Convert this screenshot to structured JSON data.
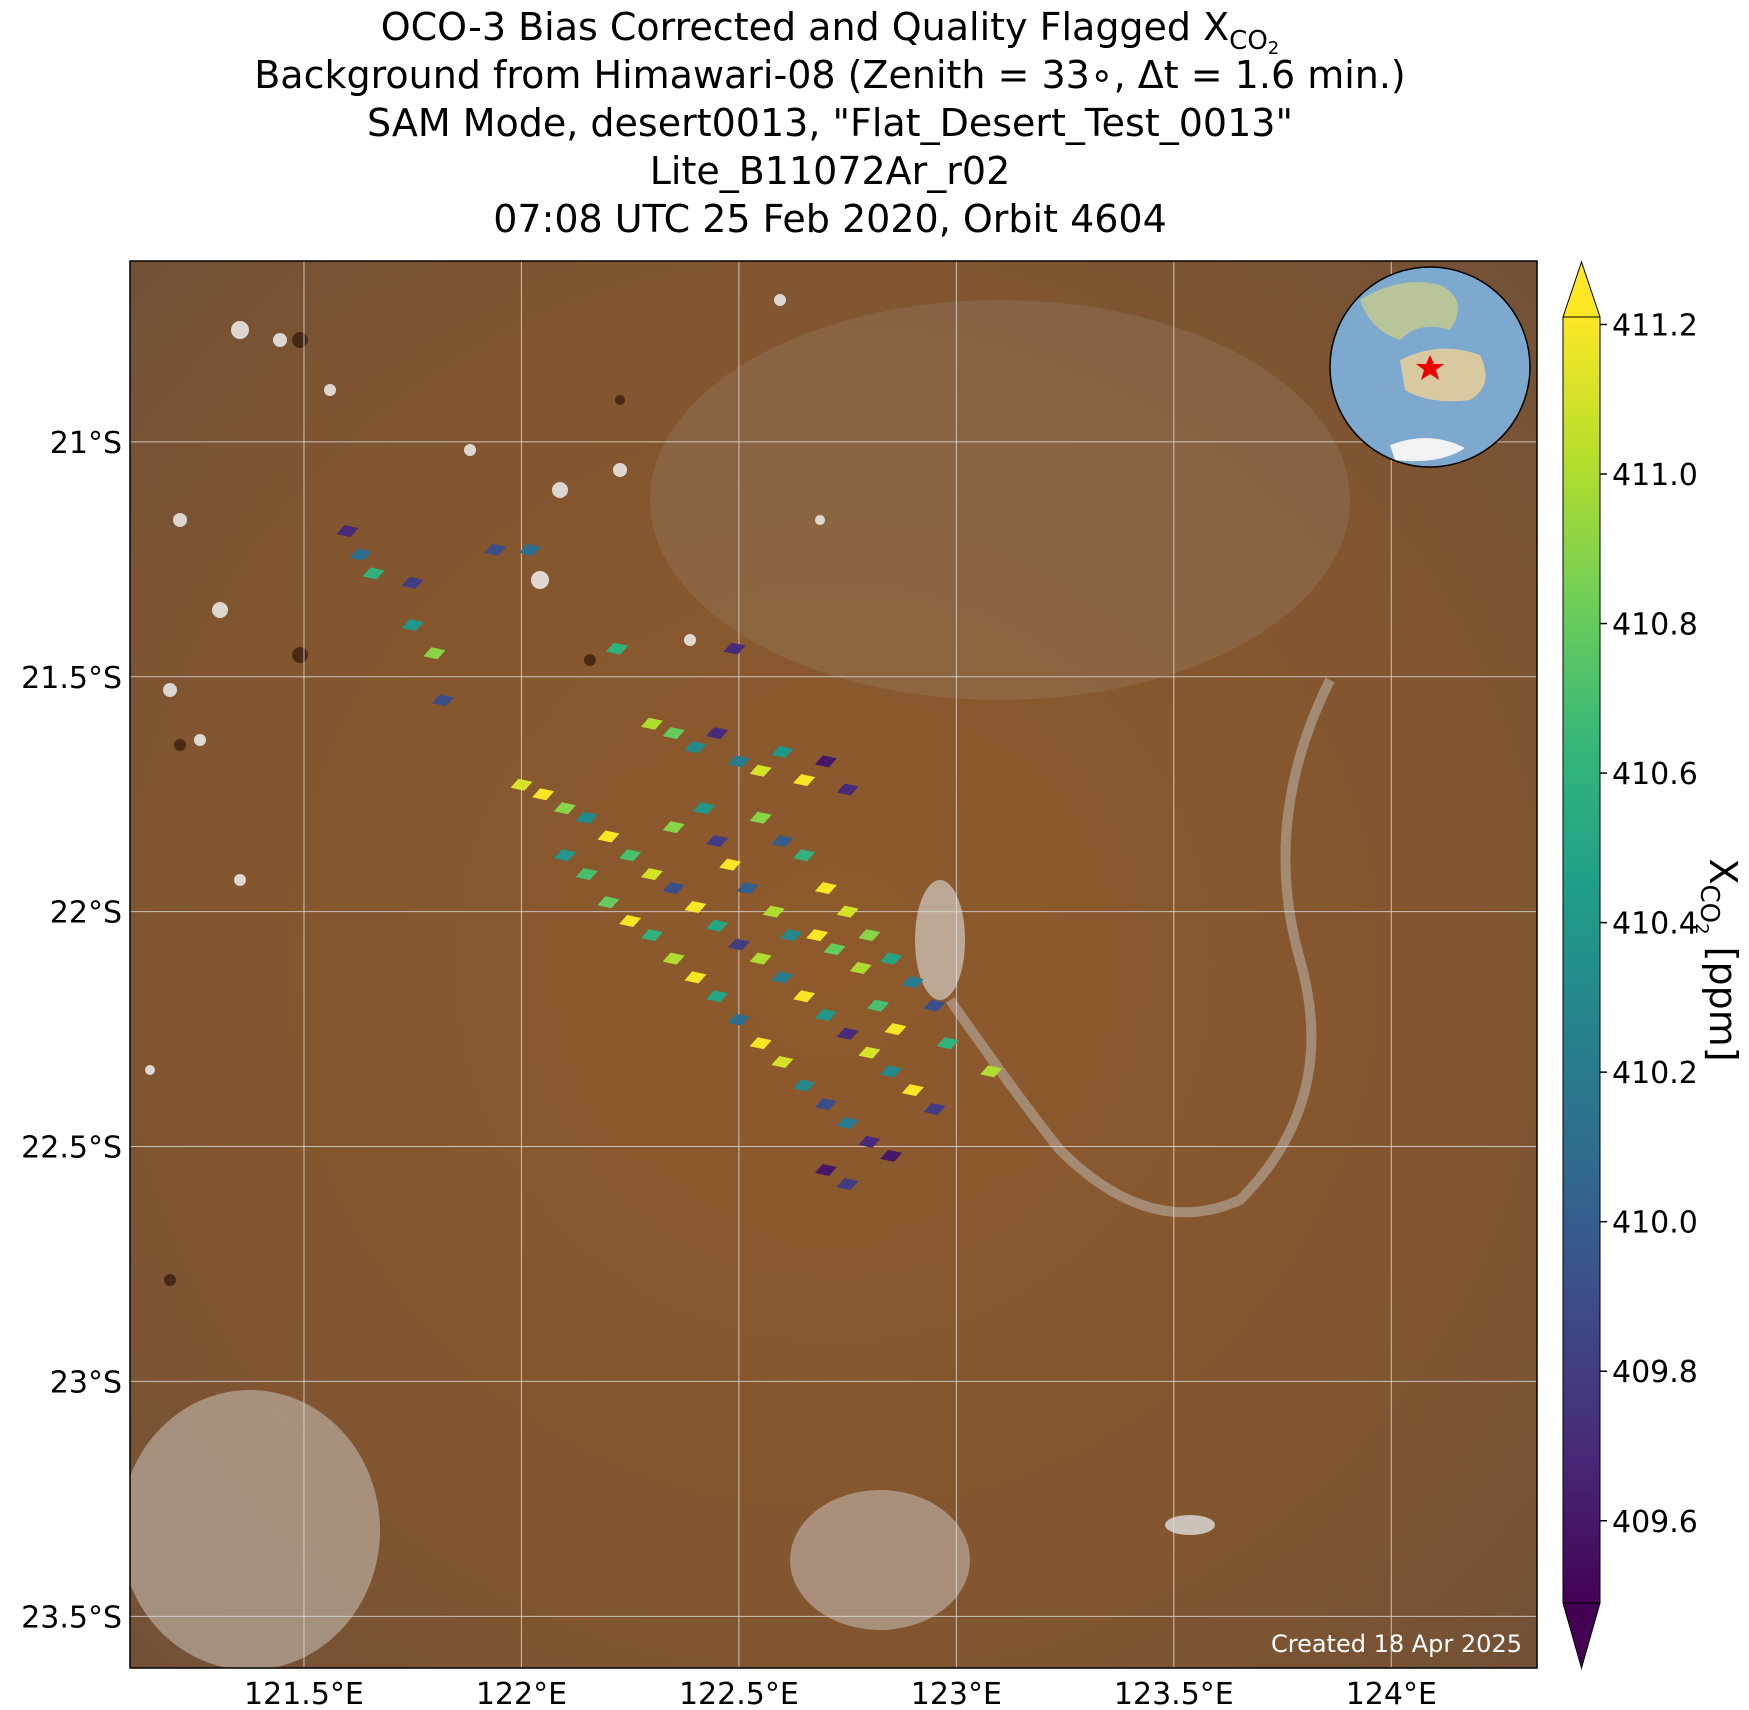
{
  "chart_data": {
    "type": "scatter",
    "title": [
      {
        "text": "OCO-3 Bias Corrected and Quality Flagged X",
        "sub": "CO",
        "subsub": "2"
      },
      {
        "text": "Background from Himawari-08 (Zenith = 33∘, Δt =  1.6 min.)"
      },
      {
        "text": "SAM Mode, desert0013, \"Flat_Desert_Test_0013\""
      },
      {
        "text": "Lite_B11072Ar_r02"
      },
      {
        "text": "07:08 UTC 25 Feb 2020, Orbit 4604"
      }
    ],
    "colorbar_label": {
      "text": "X",
      "sub": "CO",
      "subsub": "2",
      "unit": " [ppm]"
    },
    "note": "Created 18 Apr 2025",
    "colormap": "viridis",
    "grid": true,
    "xlim": [
      121.1,
      124.335
    ],
    "ylim": [
      -23.61,
      -20.615
    ],
    "clim": [
      409.49,
      411.21
    ],
    "xticks": [
      {
        "value": 121.5,
        "label": "121.5°E"
      },
      {
        "value": 122,
        "label": "122°E"
      },
      {
        "value": 122.5,
        "label": "122.5°E"
      },
      {
        "value": 123,
        "label": "123°E"
      },
      {
        "value": 123.5,
        "label": "123.5°E"
      },
      {
        "value": 124,
        "label": "124°E"
      }
    ],
    "yticks": [
      {
        "value": -21,
        "label": "21°S"
      },
      {
        "value": -21.5,
        "label": "21.5°S"
      },
      {
        "value": -22,
        "label": "22°S"
      },
      {
        "value": -22.5,
        "label": "22.5°S"
      },
      {
        "value": -23,
        "label": "23°S"
      },
      {
        "value": -23.5,
        "label": "23.5°S"
      }
    ],
    "cticks": [
      409.6,
      409.8,
      {
        "value": 410,
        "label": "410.0"
      },
      410.2,
      410.4,
      410.6,
      410.8,
      {
        "value": 411,
        "label": "411.0"
      },
      411.2
    ],
    "x": [
      121.6,
      121.63,
      121.66,
      121.75,
      121.75,
      121.8,
      121.82,
      121.94,
      122.02,
      122.22,
      122.49,
      122.0,
      122.05,
      122.1,
      122.15,
      122.2,
      122.25,
      122.3,
      122.35,
      122.4,
      122.45,
      122.5,
      122.55,
      122.6,
      122.65,
      122.7,
      122.75,
      122.8,
      122.85,
      122.9,
      122.95,
      122.2,
      122.25,
      122.3,
      122.35,
      122.4,
      122.45,
      122.5,
      122.55,
      122.6,
      122.65,
      122.7,
      122.75,
      122.8,
      122.85,
      122.7,
      122.75,
      122.3,
      122.35,
      122.4,
      122.45,
      122.5,
      122.55,
      122.6,
      122.65,
      122.7,
      122.75,
      122.55,
      122.6,
      122.65,
      122.7,
      122.75,
      122.8,
      122.85,
      122.9,
      122.95,
      122.98,
      123.08,
      122.68,
      122.72,
      122.78,
      122.82,
      122.86,
      122.52,
      122.48,
      122.45,
      122.42,
      122.58,
      122.62,
      122.35,
      122.1,
      122.15
    ],
    "y": [
      -21.19,
      -21.24,
      -21.28,
      -21.3,
      -21.39,
      -21.45,
      -21.55,
      -21.23,
      -21.23,
      -21.44,
      -21.44,
      -21.73,
      -21.75,
      -21.78,
      -21.8,
      -21.84,
      -21.88,
      -21.92,
      -21.95,
      -21.99,
      -22.03,
      -22.07,
      -22.1,
      -22.14,
      -22.18,
      -22.22,
      -22.26,
      -22.3,
      -22.34,
      -22.38,
      -22.42,
      -21.98,
      -22.02,
      -22.05,
      -22.1,
      -22.14,
      -22.18,
      -22.23,
      -22.28,
      -22.32,
      -22.37,
      -22.41,
      -22.45,
      -22.49,
      -22.52,
      -22.55,
      -22.58,
      -21.6,
      -21.62,
      -21.65,
      -21.62,
      -21.68,
      -21.7,
      -21.66,
      -21.72,
      -21.68,
      -21.74,
      -21.8,
      -21.85,
      -21.88,
      -21.95,
      -22.0,
      -22.05,
      -22.1,
      -22.15,
      -22.2,
      -22.28,
      -22.34,
      -22.05,
      -22.08,
      -22.12,
      -22.2,
      -22.25,
      -21.95,
      -21.9,
      -21.85,
      -21.78,
      -22.0,
      -22.05,
      -21.82,
      -21.88,
      -21.92
    ],
    "values": [
      409.7,
      410.1,
      410.6,
      409.8,
      410.4,
      410.9,
      409.9,
      409.9,
      410.1,
      410.6,
      409.7,
      411.1,
      411.2,
      410.9,
      410.3,
      411.2,
      410.7,
      411.1,
      409.9,
      411.2,
      410.5,
      409.8,
      411.0,
      410.2,
      411.2,
      410.4,
      409.7,
      411.1,
      410.3,
      411.2,
      409.8,
      410.8,
      411.2,
      410.6,
      411.0,
      411.2,
      410.5,
      410.1,
      411.2,
      411.1,
      410.3,
      409.9,
      410.2,
      409.7,
      409.6,
      409.6,
      409.8,
      411.0,
      410.8,
      410.3,
      409.7,
      410.2,
      411.1,
      410.4,
      411.2,
      409.6,
      409.7,
      410.9,
      410.0,
      410.6,
      411.2,
      411.1,
      410.9,
      410.5,
      410.2,
      409.9,
      410.6,
      411.0,
      411.2,
      410.8,
      411.0,
      410.7,
      411.2,
      410.0,
      411.2,
      409.8,
      410.4,
      411.0,
      410.3,
      410.9,
      410.4,
      410.7
    ]
  }
}
